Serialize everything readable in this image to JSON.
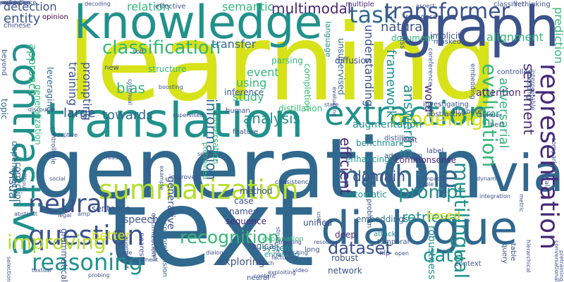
{
  "palette": {
    "purple": "#440154",
    "navy": "#3b528b",
    "blue": "#31688e",
    "teal": "#21918c",
    "green": "#35b779",
    "lime": "#90d743",
    "yellow": "#d7e219"
  },
  "words": [
    {
      "text": "learning",
      "color": "#d7e219"
    },
    {
      "text": "text",
      "color": "#31688e"
    },
    {
      "text": "generation",
      "color": "#31688e"
    },
    {
      "text": "knowledge",
      "color": "#21918c"
    },
    {
      "text": "graph",
      "color": "#3b528b"
    },
    {
      "text": "translation",
      "color": "#21918c"
    },
    {
      "text": "dialogue",
      "color": "#31688e"
    },
    {
      "text": "via",
      "color": "#31688e"
    },
    {
      "text": "contrastive",
      "color": "#21918c"
    },
    {
      "text": "summarization",
      "color": "#b5de2b"
    },
    {
      "text": "extraction",
      "color": "#21918c"
    },
    {
      "text": "representation",
      "color": "#482878"
    },
    {
      "text": "question",
      "color": "#3b528b"
    },
    {
      "text": "machine",
      "color": "#31688e"
    },
    {
      "text": "reasoning",
      "color": "#21918c"
    },
    {
      "text": "neural",
      "color": "#3b528b"
    },
    {
      "text": "task",
      "color": "#31688e"
    },
    {
      "text": "transformer",
      "color": "#3b528b"
    },
    {
      "text": "multilingual",
      "color": "#21918c"
    },
    {
      "text": "classification",
      "color": "#35b779"
    },
    {
      "text": "modeling",
      "color": "#d7e219"
    },
    {
      "text": "evaluation",
      "color": "#35b779"
    },
    {
      "text": "recognition",
      "color": "#35b779"
    },
    {
      "text": "prompt",
      "color": "#21918c"
    },
    {
      "text": "dataset",
      "color": "#3b528b"
    },
    {
      "text": "data",
      "color": "#21918c"
    },
    {
      "text": "improving",
      "color": "#b5de2b"
    },
    {
      "text": "multimodal",
      "color": "#482878"
    },
    {
      "text": "entity",
      "color": "#3b528b"
    },
    {
      "text": "detection",
      "color": "#3b528b"
    },
    {
      "text": "relation",
      "color": "#35b779"
    },
    {
      "text": "semantic",
      "color": "#35b779"
    },
    {
      "text": "natural",
      "color": "#3b528b"
    },
    {
      "text": "retrieval",
      "color": "#21918c"
    },
    {
      "text": "answering",
      "color": "#21918c"
    },
    {
      "text": "information",
      "color": "#31688e"
    },
    {
      "text": "analysis",
      "color": "#21918c"
    },
    {
      "text": "efficient",
      "color": "#482878"
    },
    {
      "text": "domain",
      "color": "#3b528b"
    },
    {
      "text": "sentiment",
      "color": "#482878"
    },
    {
      "text": "framework",
      "color": "#21918c"
    },
    {
      "text": "bias",
      "color": "#35b779"
    },
    {
      "text": "towards",
      "color": "#31688e"
    },
    {
      "text": "large",
      "color": "#3b528b"
    },
    {
      "text": "better",
      "color": "#d7e219"
    },
    {
      "text": "prediction",
      "color": "#35b779"
    },
    {
      "text": "alignment",
      "color": "#35b779"
    },
    {
      "text": "adversarial",
      "color": "#35b779"
    },
    {
      "text": "approach",
      "color": "#35b779"
    },
    {
      "text": "training",
      "color": "#3b528b"
    },
    {
      "text": "prompting",
      "color": "#3b528b"
    },
    {
      "text": "transfer",
      "color": "#31688e"
    },
    {
      "text": "study",
      "color": "#35b779"
    },
    {
      "text": "using",
      "color": "#35b779"
    },
    {
      "text": "event",
      "color": "#35b779"
    },
    {
      "text": "word",
      "color": "#482878"
    },
    {
      "text": "understanding",
      "color": "#3b528b"
    },
    {
      "text": "neural",
      "color": "#3b528b"
    },
    {
      "text": "visual",
      "color": "#31688e"
    },
    {
      "text": "speech",
      "color": "#3b528b"
    },
    {
      "text": "generative",
      "color": "#3b528b"
    },
    {
      "text": "based",
      "color": "#d7e219"
    },
    {
      "text": "robustness",
      "color": "#21918c"
    },
    {
      "text": "augmentation",
      "color": "#21918c"
    },
    {
      "text": "enhancing",
      "color": "#21918c"
    },
    {
      "text": "automatic",
      "color": "#21918c"
    },
    {
      "text": "error",
      "color": "#21918c"
    },
    {
      "text": "attention",
      "color": "#482878"
    },
    {
      "text": "embeddings",
      "color": "#31688e"
    },
    {
      "text": "exploring",
      "color": "#3b528b"
    },
    {
      "text": "deep",
      "color": "#482878"
    },
    {
      "text": "system",
      "color": "#21918c"
    },
    {
      "text": "unified",
      "color": "#3b528b"
    },
    {
      "text": "sequence",
      "color": "#482878"
    },
    {
      "text": "named",
      "color": "#3b528b"
    },
    {
      "text": "sentence",
      "color": "#3b528b"
    },
    {
      "text": "commonsense",
      "color": "#482878"
    },
    {
      "text": "benchmark",
      "color": "#21918c"
    },
    {
      "text": "case",
      "color": "#3b528b"
    },
    {
      "text": "method",
      "color": "#3b528b"
    },
    {
      "text": "logical",
      "color": "#3b528b"
    },
    {
      "text": "network",
      "color": "#3b528b"
    },
    {
      "text": "robust",
      "color": "#3b528b"
    },
    {
      "text": "structure",
      "color": "#35b779"
    },
    {
      "text": "inference",
      "color": "#3b528b"
    },
    {
      "text": "distillation",
      "color": "#35b779"
    },
    {
      "text": "completion",
      "color": "#35b779"
    },
    {
      "text": "conversation",
      "color": "#35b779"
    },
    {
      "text": "parsing",
      "color": "#35b779"
    },
    {
      "text": "document",
      "color": "#35b779"
    },
    {
      "text": "multiple",
      "color": "#482878"
    },
    {
      "text": "effective",
      "color": "#3b528b"
    },
    {
      "text": "opinion",
      "color": "#440154"
    },
    {
      "text": "chinese",
      "color": "#3b528b"
    },
    {
      "text": "leveraging",
      "color": "#31688e"
    },
    {
      "text": "generalization",
      "color": "#35b779"
    },
    {
      "text": "language",
      "color": "#21918c"
    },
    {
      "text": "unsupervised",
      "color": "#31688e"
    },
    {
      "text": "diffusion",
      "color": "#3b528b"
    },
    {
      "text": "implicit",
      "color": "#3b528b"
    },
    {
      "text": "masked",
      "color": "#3b528b"
    },
    {
      "text": "response",
      "color": "#3b528b"
    },
    {
      "text": "human",
      "color": "#3b528b"
    },
    {
      "text": "feature",
      "color": "#3b528b"
    },
    {
      "text": "topic",
      "color": "#31688e"
    },
    {
      "text": "dependency",
      "color": "#31688e"
    },
    {
      "text": "correction",
      "color": "#31688e"
    },
    {
      "text": "grammatical",
      "color": "#3b528b"
    },
    {
      "text": "comprehension",
      "color": "#31688e"
    },
    {
      "text": "optimization",
      "color": "#3b528b"
    },
    {
      "text": "pretrained",
      "color": "#35b779"
    },
    {
      "text": "explanation",
      "color": "#35b779"
    },
    {
      "text": "enhanced",
      "color": "#21918c"
    },
    {
      "text": "problem",
      "color": "#3b528b"
    },
    {
      "text": "long",
      "color": "#3b528b"
    },
    {
      "text": "temporal",
      "color": "#3b528b"
    },
    {
      "text": "attack",
      "color": "#21918c"
    },
    {
      "text": "nlp",
      "color": "#3b528b"
    },
    {
      "text": "context",
      "color": "#3b528b"
    },
    {
      "text": "label",
      "color": "#3b528b"
    },
    {
      "text": "joint",
      "color": "#3b528b"
    },
    {
      "text": "table",
      "color": "#3b528b"
    },
    {
      "text": "query",
      "color": "#3b528b"
    },
    {
      "text": "tuning",
      "color": "#3b528b"
    },
    {
      "text": "adaptation",
      "color": "#3b528b"
    },
    {
      "text": "distilling",
      "color": "#3b528b"
    },
    {
      "text": "investigating",
      "color": "#3b528b"
    },
    {
      "text": "abstractive",
      "color": "#3b528b"
    },
    {
      "text": "attribute",
      "color": "#3b528b"
    },
    {
      "text": "bert",
      "color": "#3b528b"
    },
    {
      "text": "embedding",
      "color": "#3b528b"
    },
    {
      "text": "coreference",
      "color": "#3b528b"
    },
    {
      "text": "encoding",
      "color": "#3b528b"
    },
    {
      "text": "interpretable",
      "color": "#3b528b"
    },
    {
      "text": "controlled",
      "color": "#3b528b"
    },
    {
      "text": "classifier",
      "color": "#3b528b"
    },
    {
      "text": "rethinking",
      "color": "#3b528b"
    },
    {
      "text": "loss",
      "color": "#3b528b"
    },
    {
      "text": "aspect",
      "color": "#3b528b"
    },
    {
      "text": "decoding",
      "color": "#3b528b"
    },
    {
      "text": "beyond",
      "color": "#3b528b"
    },
    {
      "text": "new",
      "color": "#3b528b"
    },
    {
      "text": "soft",
      "color": "#3b528b"
    },
    {
      "text": "continual",
      "color": "#3b528b"
    },
    {
      "text": "boosting",
      "color": "#3b528b"
    },
    {
      "text": "discourse",
      "color": "#3b528b"
    },
    {
      "text": "supervised",
      "color": "#3b528b"
    },
    {
      "text": "adaptor",
      "color": "#3b528b"
    },
    {
      "text": "improves",
      "color": "#3b528b"
    },
    {
      "text": "consistency",
      "color": "#3b528b"
    },
    {
      "text": "controllable",
      "color": "#3b528b"
    },
    {
      "text": "adaptive",
      "color": "#3b528b"
    },
    {
      "text": "social",
      "color": "#3b528b"
    },
    {
      "text": "without",
      "color": "#3b528b"
    },
    {
      "text": "amp",
      "color": "#3b528b"
    },
    {
      "text": "abstract",
      "color": "#3b528b"
    },
    {
      "text": "legal",
      "color": "#3b528b"
    },
    {
      "text": "code",
      "color": "#3b528b"
    },
    {
      "text": "argument",
      "color": "#3b528b"
    },
    {
      "text": "nearest",
      "color": "#3b528b"
    },
    {
      "text": "news",
      "color": "#3b528b"
    },
    {
      "text": "dialog",
      "color": "#3b528b"
    },
    {
      "text": "search",
      "color": "#3b528b"
    },
    {
      "text": "video",
      "color": "#3b528b"
    },
    {
      "text": "user",
      "color": "#3b528b"
    },
    {
      "text": "impact",
      "color": "#3b528b"
    },
    {
      "text": "role",
      "color": "#3b528b"
    },
    {
      "text": "dynamic",
      "color": "#3b528b"
    },
    {
      "text": "integration",
      "color": "#3b528b"
    },
    {
      "text": "metric",
      "color": "#3b528b"
    },
    {
      "text": "dual",
      "color": "#3b528b"
    },
    {
      "text": "comparison",
      "color": "#3b528b"
    },
    {
      "text": "pretraining",
      "color": "#3b528b"
    },
    {
      "text": "emotion",
      "color": "#3b528b"
    },
    {
      "text": "hierarchical",
      "color": "#3b528b"
    },
    {
      "text": "conversational",
      "color": "#3b528b"
    },
    {
      "text": "factuality",
      "color": "#3b528b"
    },
    {
      "text": "tracking",
      "color": "#3b528b"
    },
    {
      "text": "exploiting",
      "color": "#3b528b"
    },
    {
      "text": "content",
      "color": "#3b528b"
    },
    {
      "text": "probing",
      "color": "#3b528b"
    },
    {
      "text": "textual",
      "color": "#3b528b"
    },
    {
      "text": "selection",
      "color": "#3b528b"
    },
    {
      "text": "reading",
      "color": "#3b528b"
    },
    {
      "text": "open",
      "color": "#3b528b"
    },
    {
      "text": "resource",
      "color": "#3b528b"
    },
    {
      "text": "state",
      "color": "#3b528b"
    },
    {
      "text": "evaluating",
      "color": "#3b528b"
    },
    {
      "text": "example",
      "color": "#3b528b"
    },
    {
      "text": "augmented",
      "color": "#3b528b"
    },
    {
      "text": "set",
      "color": "#3b528b"
    },
    {
      "text": "revisiting",
      "color": "#3b528b"
    },
    {
      "text": "structured",
      "color": "#3b528b"
    },
    {
      "text": "annotation",
      "color": "#3b528b"
    },
    {
      "text": "measuring",
      "color": "#3b528b"
    },
    {
      "text": "support",
      "color": "#3b528b"
    },
    {
      "text": "review",
      "color": "#3b528b"
    },
    {
      "text": "performance",
      "color": "#3b528b"
    }
  ]
}
